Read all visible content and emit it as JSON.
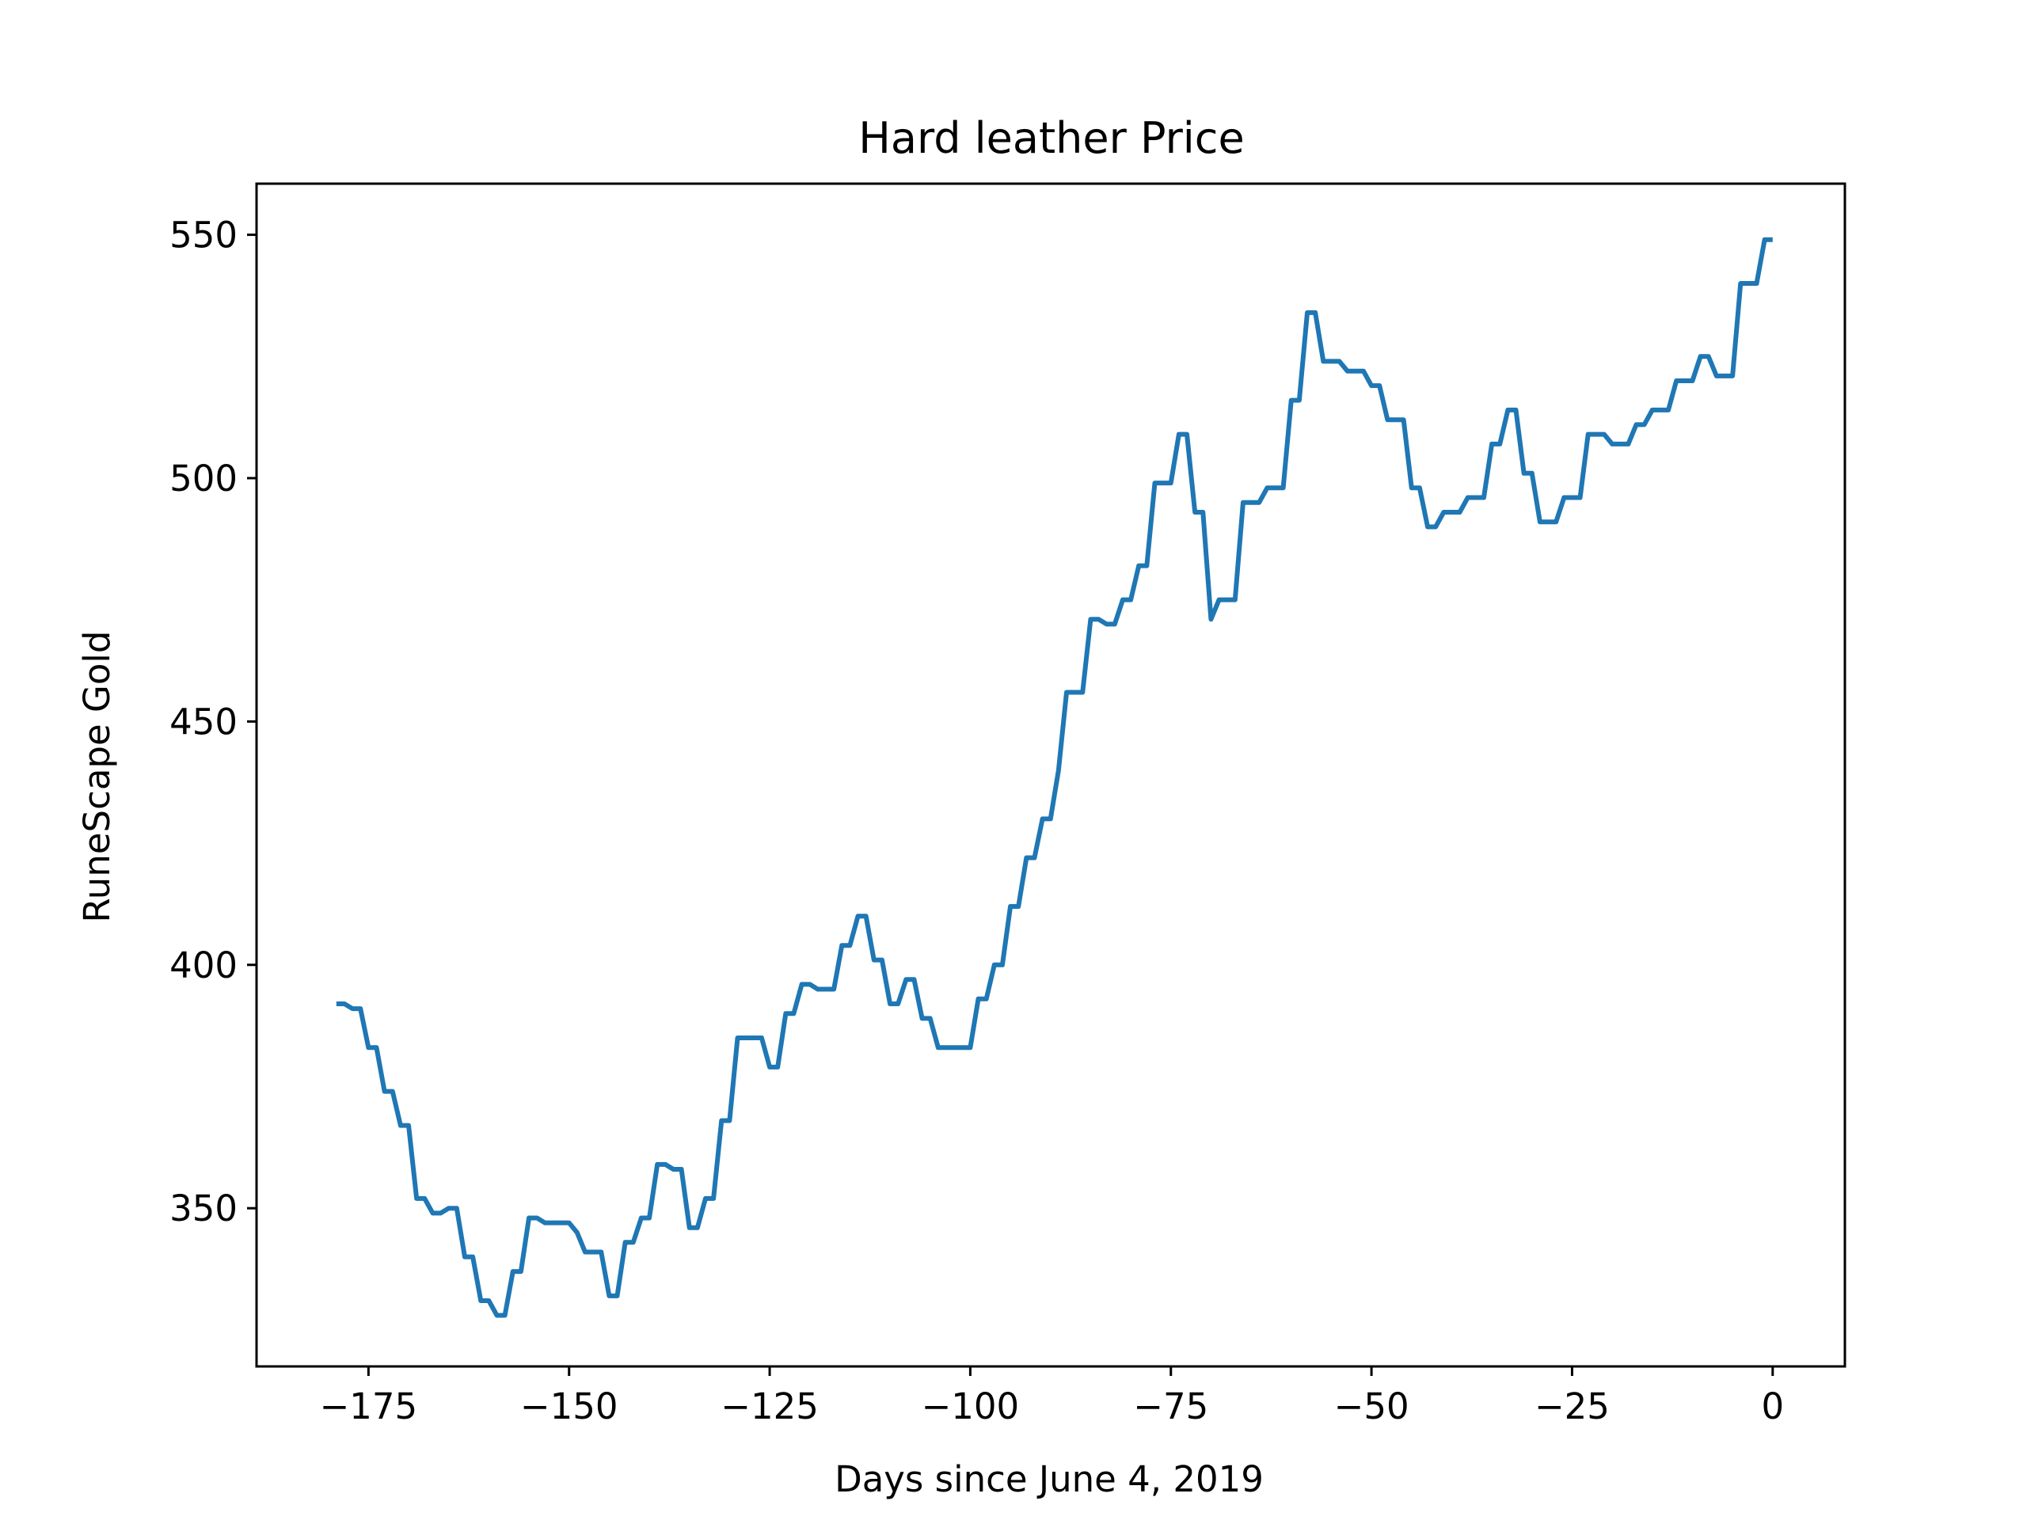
{
  "chart_data": {
    "type": "line",
    "title": "Hard leather Price",
    "xlabel": "Days since June 4, 2019",
    "ylabel": "RuneScape Gold",
    "xlim": [
      -188.95,
      9.0
    ],
    "ylim": [
      317.5,
      560.5
    ],
    "x_ticks": [
      -175,
      -150,
      -125,
      -100,
      -75,
      -50,
      -25,
      0
    ],
    "x_tick_labels": [
      "−175",
      "−150",
      "−125",
      "−100",
      "−75",
      "−50",
      "−25",
      "0"
    ],
    "y_ticks": [
      350,
      400,
      450,
      500,
      550
    ],
    "y_tick_labels": [
      "350",
      "400",
      "450",
      "500",
      "550"
    ],
    "grid": false,
    "line_color": "#1f77b4",
    "series": [
      {
        "points": [
          [
            -179,
            392
          ],
          [
            -178,
            392
          ],
          [
            -177,
            391
          ],
          [
            -176,
            391
          ],
          [
            -175,
            383
          ],
          [
            -174,
            383
          ],
          [
            -173,
            374
          ],
          [
            -172,
            374
          ],
          [
            -171,
            367
          ],
          [
            -170,
            367
          ],
          [
            -169,
            352
          ],
          [
            -168,
            352
          ],
          [
            -167,
            349
          ],
          [
            -166,
            349
          ],
          [
            -165,
            350
          ],
          [
            -164,
            350
          ],
          [
            -163,
            340
          ],
          [
            -162,
            340
          ],
          [
            -161,
            331
          ],
          [
            -160,
            331
          ],
          [
            -159,
            328
          ],
          [
            -158,
            328
          ],
          [
            -157,
            337
          ],
          [
            -156,
            337
          ],
          [
            -155,
            348
          ],
          [
            -154,
            348
          ],
          [
            -153,
            347
          ],
          [
            -152,
            347
          ],
          [
            -151,
            347
          ],
          [
            -150,
            347
          ],
          [
            -149,
            345
          ],
          [
            -148,
            341
          ],
          [
            -147,
            341
          ],
          [
            -146,
            341
          ],
          [
            -145,
            332
          ],
          [
            -144,
            332
          ],
          [
            -143,
            343
          ],
          [
            -142,
            343
          ],
          [
            -141,
            348
          ],
          [
            -140,
            348
          ],
          [
            -139,
            359
          ],
          [
            -138,
            359
          ],
          [
            -137,
            358
          ],
          [
            -136,
            358
          ],
          [
            -135,
            346
          ],
          [
            -134,
            346
          ],
          [
            -133,
            352
          ],
          [
            -132,
            352
          ],
          [
            -131,
            368
          ],
          [
            -130,
            368
          ],
          [
            -129,
            385
          ],
          [
            -128,
            385
          ],
          [
            -127,
            385
          ],
          [
            -126,
            385
          ],
          [
            -125,
            379
          ],
          [
            -124,
            379
          ],
          [
            -123,
            390
          ],
          [
            -122,
            390
          ],
          [
            -121,
            396
          ],
          [
            -120,
            396
          ],
          [
            -119,
            395
          ],
          [
            -118,
            395
          ],
          [
            -117,
            395
          ],
          [
            -116,
            404
          ],
          [
            -115,
            404
          ],
          [
            -114,
            410
          ],
          [
            -113,
            410
          ],
          [
            -112,
            401
          ],
          [
            -111,
            401
          ],
          [
            -110,
            392
          ],
          [
            -109,
            392
          ],
          [
            -108,
            397
          ],
          [
            -107,
            397
          ],
          [
            -106,
            389
          ],
          [
            -105,
            389
          ],
          [
            -104,
            383
          ],
          [
            -103,
            383
          ],
          [
            -102,
            383
          ],
          [
            -101,
            383
          ],
          [
            -100,
            383
          ],
          [
            -99,
            393
          ],
          [
            -98,
            393
          ],
          [
            -97,
            400
          ],
          [
            -96,
            400
          ],
          [
            -95,
            412
          ],
          [
            -94,
            412
          ],
          [
            -93,
            422
          ],
          [
            -92,
            422
          ],
          [
            -91,
            430
          ],
          [
            -90,
            430
          ],
          [
            -89,
            440
          ],
          [
            -88,
            456
          ],
          [
            -87,
            456
          ],
          [
            -86,
            456
          ],
          [
            -85,
            471
          ],
          [
            -84,
            471
          ],
          [
            -83,
            470
          ],
          [
            -82,
            470
          ],
          [
            -81,
            475
          ],
          [
            -80,
            475
          ],
          [
            -79,
            482
          ],
          [
            -78,
            482
          ],
          [
            -77,
            499
          ],
          [
            -76,
            499
          ],
          [
            -75,
            499
          ],
          [
            -74,
            509
          ],
          [
            -73,
            509
          ],
          [
            -72,
            493
          ],
          [
            -71,
            493
          ],
          [
            -70,
            471
          ],
          [
            -69,
            475
          ],
          [
            -68,
            475
          ],
          [
            -67,
            475
          ],
          [
            -66,
            495
          ],
          [
            -65,
            495
          ],
          [
            -64,
            495
          ],
          [
            -63,
            498
          ],
          [
            -62,
            498
          ],
          [
            -61,
            498
          ],
          [
            -60,
            516
          ],
          [
            -59,
            516
          ],
          [
            -58,
            534
          ],
          [
            -57,
            534
          ],
          [
            -56,
            524
          ],
          [
            -55,
            524
          ],
          [
            -54,
            524
          ],
          [
            -53,
            522
          ],
          [
            -52,
            522
          ],
          [
            -51,
            522
          ],
          [
            -50,
            519
          ],
          [
            -49,
            519
          ],
          [
            -48,
            512
          ],
          [
            -47,
            512
          ],
          [
            -46,
            512
          ],
          [
            -45,
            498
          ],
          [
            -44,
            498
          ],
          [
            -43,
            490
          ],
          [
            -42,
            490
          ],
          [
            -41,
            493
          ],
          [
            -40,
            493
          ],
          [
            -39,
            493
          ],
          [
            -38,
            496
          ],
          [
            -37,
            496
          ],
          [
            -36,
            496
          ],
          [
            -35,
            507
          ],
          [
            -34,
            507
          ],
          [
            -33,
            514
          ],
          [
            -32,
            514
          ],
          [
            -31,
            501
          ],
          [
            -30,
            501
          ],
          [
            -29,
            491
          ],
          [
            -28,
            491
          ],
          [
            -27,
            491
          ],
          [
            -26,
            496
          ],
          [
            -25,
            496
          ],
          [
            -24,
            496
          ],
          [
            -23,
            509
          ],
          [
            -22,
            509
          ],
          [
            -21,
            509
          ],
          [
            -20,
            507
          ],
          [
            -19,
            507
          ],
          [
            -18,
            507
          ],
          [
            -17,
            511
          ],
          [
            -16,
            511
          ],
          [
            -15,
            514
          ],
          [
            -14,
            514
          ],
          [
            -13,
            514
          ],
          [
            -12,
            520
          ],
          [
            -11,
            520
          ],
          [
            -10,
            520
          ],
          [
            -9,
            525
          ],
          [
            -8,
            525
          ],
          [
            -7,
            521
          ],
          [
            -6,
            521
          ],
          [
            -5,
            521
          ],
          [
            -4,
            540
          ],
          [
            -3,
            540
          ],
          [
            -2,
            540
          ],
          [
            -1,
            549
          ],
          [
            0,
            549
          ]
        ]
      }
    ]
  }
}
